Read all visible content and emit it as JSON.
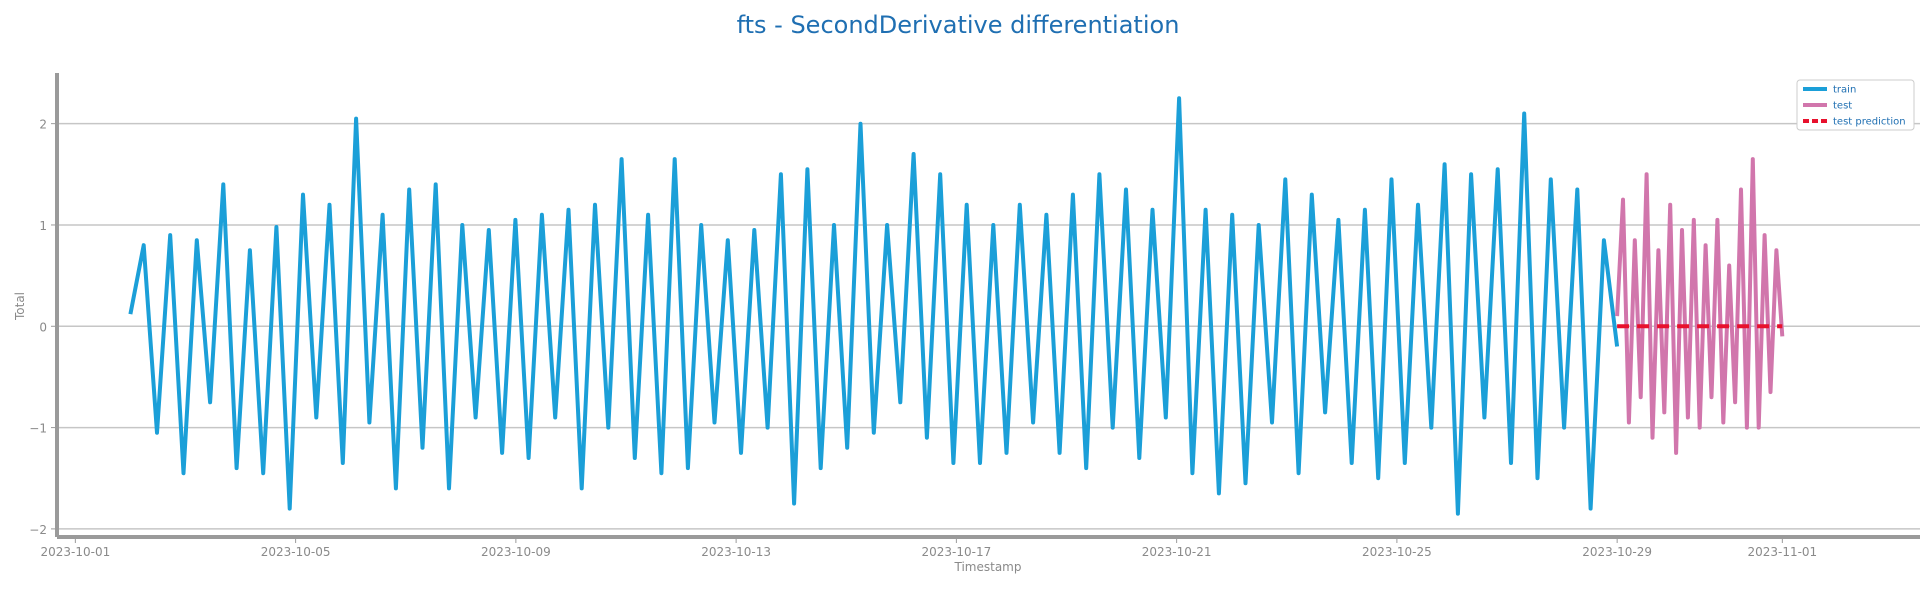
{
  "chart_data": {
    "type": "line",
    "title": "fts - SecondDerivative differentiation",
    "xlabel": "Timestamp",
    "ylabel": "Total",
    "x_range": [
      "2023-09-30T16:00",
      "2023-11-03T12:00"
    ],
    "ylim": [
      -2.08,
      2.5
    ],
    "grid": "horizontal",
    "legend_position": "top-right",
    "x_ticks": [
      "2023-10-01",
      "2023-10-05",
      "2023-10-09",
      "2023-10-13",
      "2023-10-17",
      "2023-10-21",
      "2023-10-25",
      "2023-10-29",
      "2023-11-01"
    ],
    "y_ticks": [
      -2,
      -1,
      0,
      1,
      2
    ],
    "y_tick_labels": [
      "−2",
      "−1",
      "0",
      "1",
      "2"
    ],
    "series": [
      {
        "name": "train",
        "color": "#1b9fd8",
        "style": "solid",
        "x_start": "2023-10-02T00:00",
        "x_end": "2023-10-29T00:00",
        "values": [
          0.12,
          0.8,
          -1.05,
          0.9,
          -1.45,
          0.85,
          -0.75,
          1.4,
          -1.4,
          0.75,
          -1.45,
          0.98,
          -1.8,
          1.3,
          -0.9,
          1.2,
          -1.35,
          2.05,
          -0.95,
          1.1,
          -1.6,
          1.35,
          -1.2,
          1.4,
          -1.6,
          1.0,
          -0.9,
          0.95,
          -1.25,
          1.05,
          -1.3,
          1.1,
          -0.9,
          1.15,
          -1.6,
          1.2,
          -1.0,
          1.65,
          -1.3,
          1.1,
          -1.45,
          1.65,
          -1.4,
          1.0,
          -0.95,
          0.85,
          -1.25,
          0.95,
          -1.0,
          1.5,
          -1.75,
          1.55,
          -1.4,
          1.0,
          -1.2,
          2.0,
          -1.05,
          1.0,
          -0.75,
          1.7,
          -1.1,
          1.5,
          -1.35,
          1.2,
          -1.35,
          1.0,
          -1.25,
          1.2,
          -0.95,
          1.1,
          -1.25,
          1.3,
          -1.4,
          1.5,
          -1.0,
          1.35,
          -1.3,
          1.15,
          -0.9,
          2.25,
          -1.45,
          1.15,
          -1.65,
          1.1,
          -1.55,
          1.0,
          -0.95,
          1.45,
          -1.45,
          1.3,
          -0.85,
          1.05,
          -1.35,
          1.15,
          -1.5,
          1.45,
          -1.35,
          1.2,
          -1.0,
          1.6,
          -1.85,
          1.5,
          -0.9,
          1.55,
          -1.35,
          2.1,
          -1.5,
          1.45,
          -1.0,
          1.35,
          -1.8,
          0.85,
          -0.2
        ]
      },
      {
        "name": "test",
        "color": "#d176ac",
        "style": "solid",
        "x_start": "2023-10-29T00:00",
        "x_end": "2023-11-01T00:00",
        "values": [
          0.1,
          1.25,
          -0.95,
          0.85,
          -0.7,
          1.5,
          -1.1,
          0.75,
          -0.85,
          1.2,
          -1.25,
          0.95,
          -0.9,
          1.05,
          -1.0,
          0.8,
          -0.7,
          1.05,
          -0.95,
          0.6,
          -0.75,
          1.35,
          -1.0,
          1.65,
          -1.0,
          0.9,
          -0.65,
          0.75,
          -0.1
        ]
      },
      {
        "name": "test prediction",
        "color": "#e8112d",
        "style": "dashed",
        "x": [
          "2023-10-29T00:00",
          "2023-11-01T00:00"
        ],
        "values": [
          0,
          0
        ]
      }
    ]
  }
}
